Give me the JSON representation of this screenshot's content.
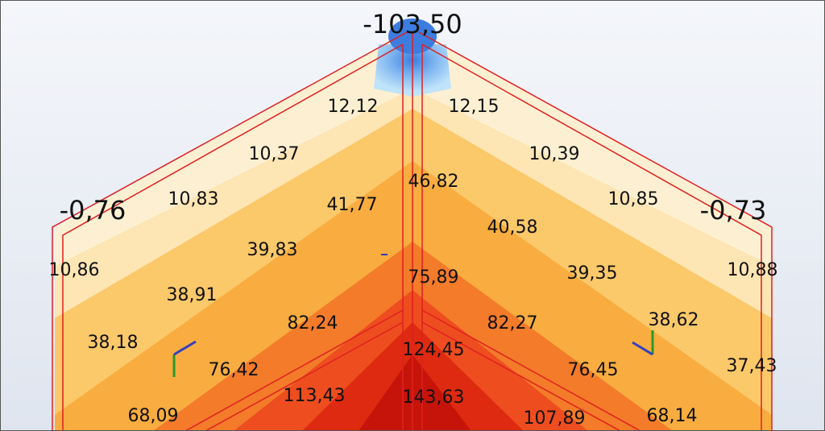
{
  "labels": [
    "-103,50",
    "-0,76",
    "-0,73",
    "12,12",
    "12,15",
    "10,37",
    "10,39",
    "10,83",
    "41,77",
    "46,82",
    "10,85",
    "40,58",
    "39,83",
    "10,86",
    "75,89",
    "39,35",
    "10,88",
    "38,91",
    "82,24",
    "82,27",
    "38,62",
    "38,18",
    "124,45",
    "76,42",
    "76,45",
    "37,43",
    "113,43",
    "143,63",
    "68,09",
    "107,89",
    "68,14"
  ]
}
